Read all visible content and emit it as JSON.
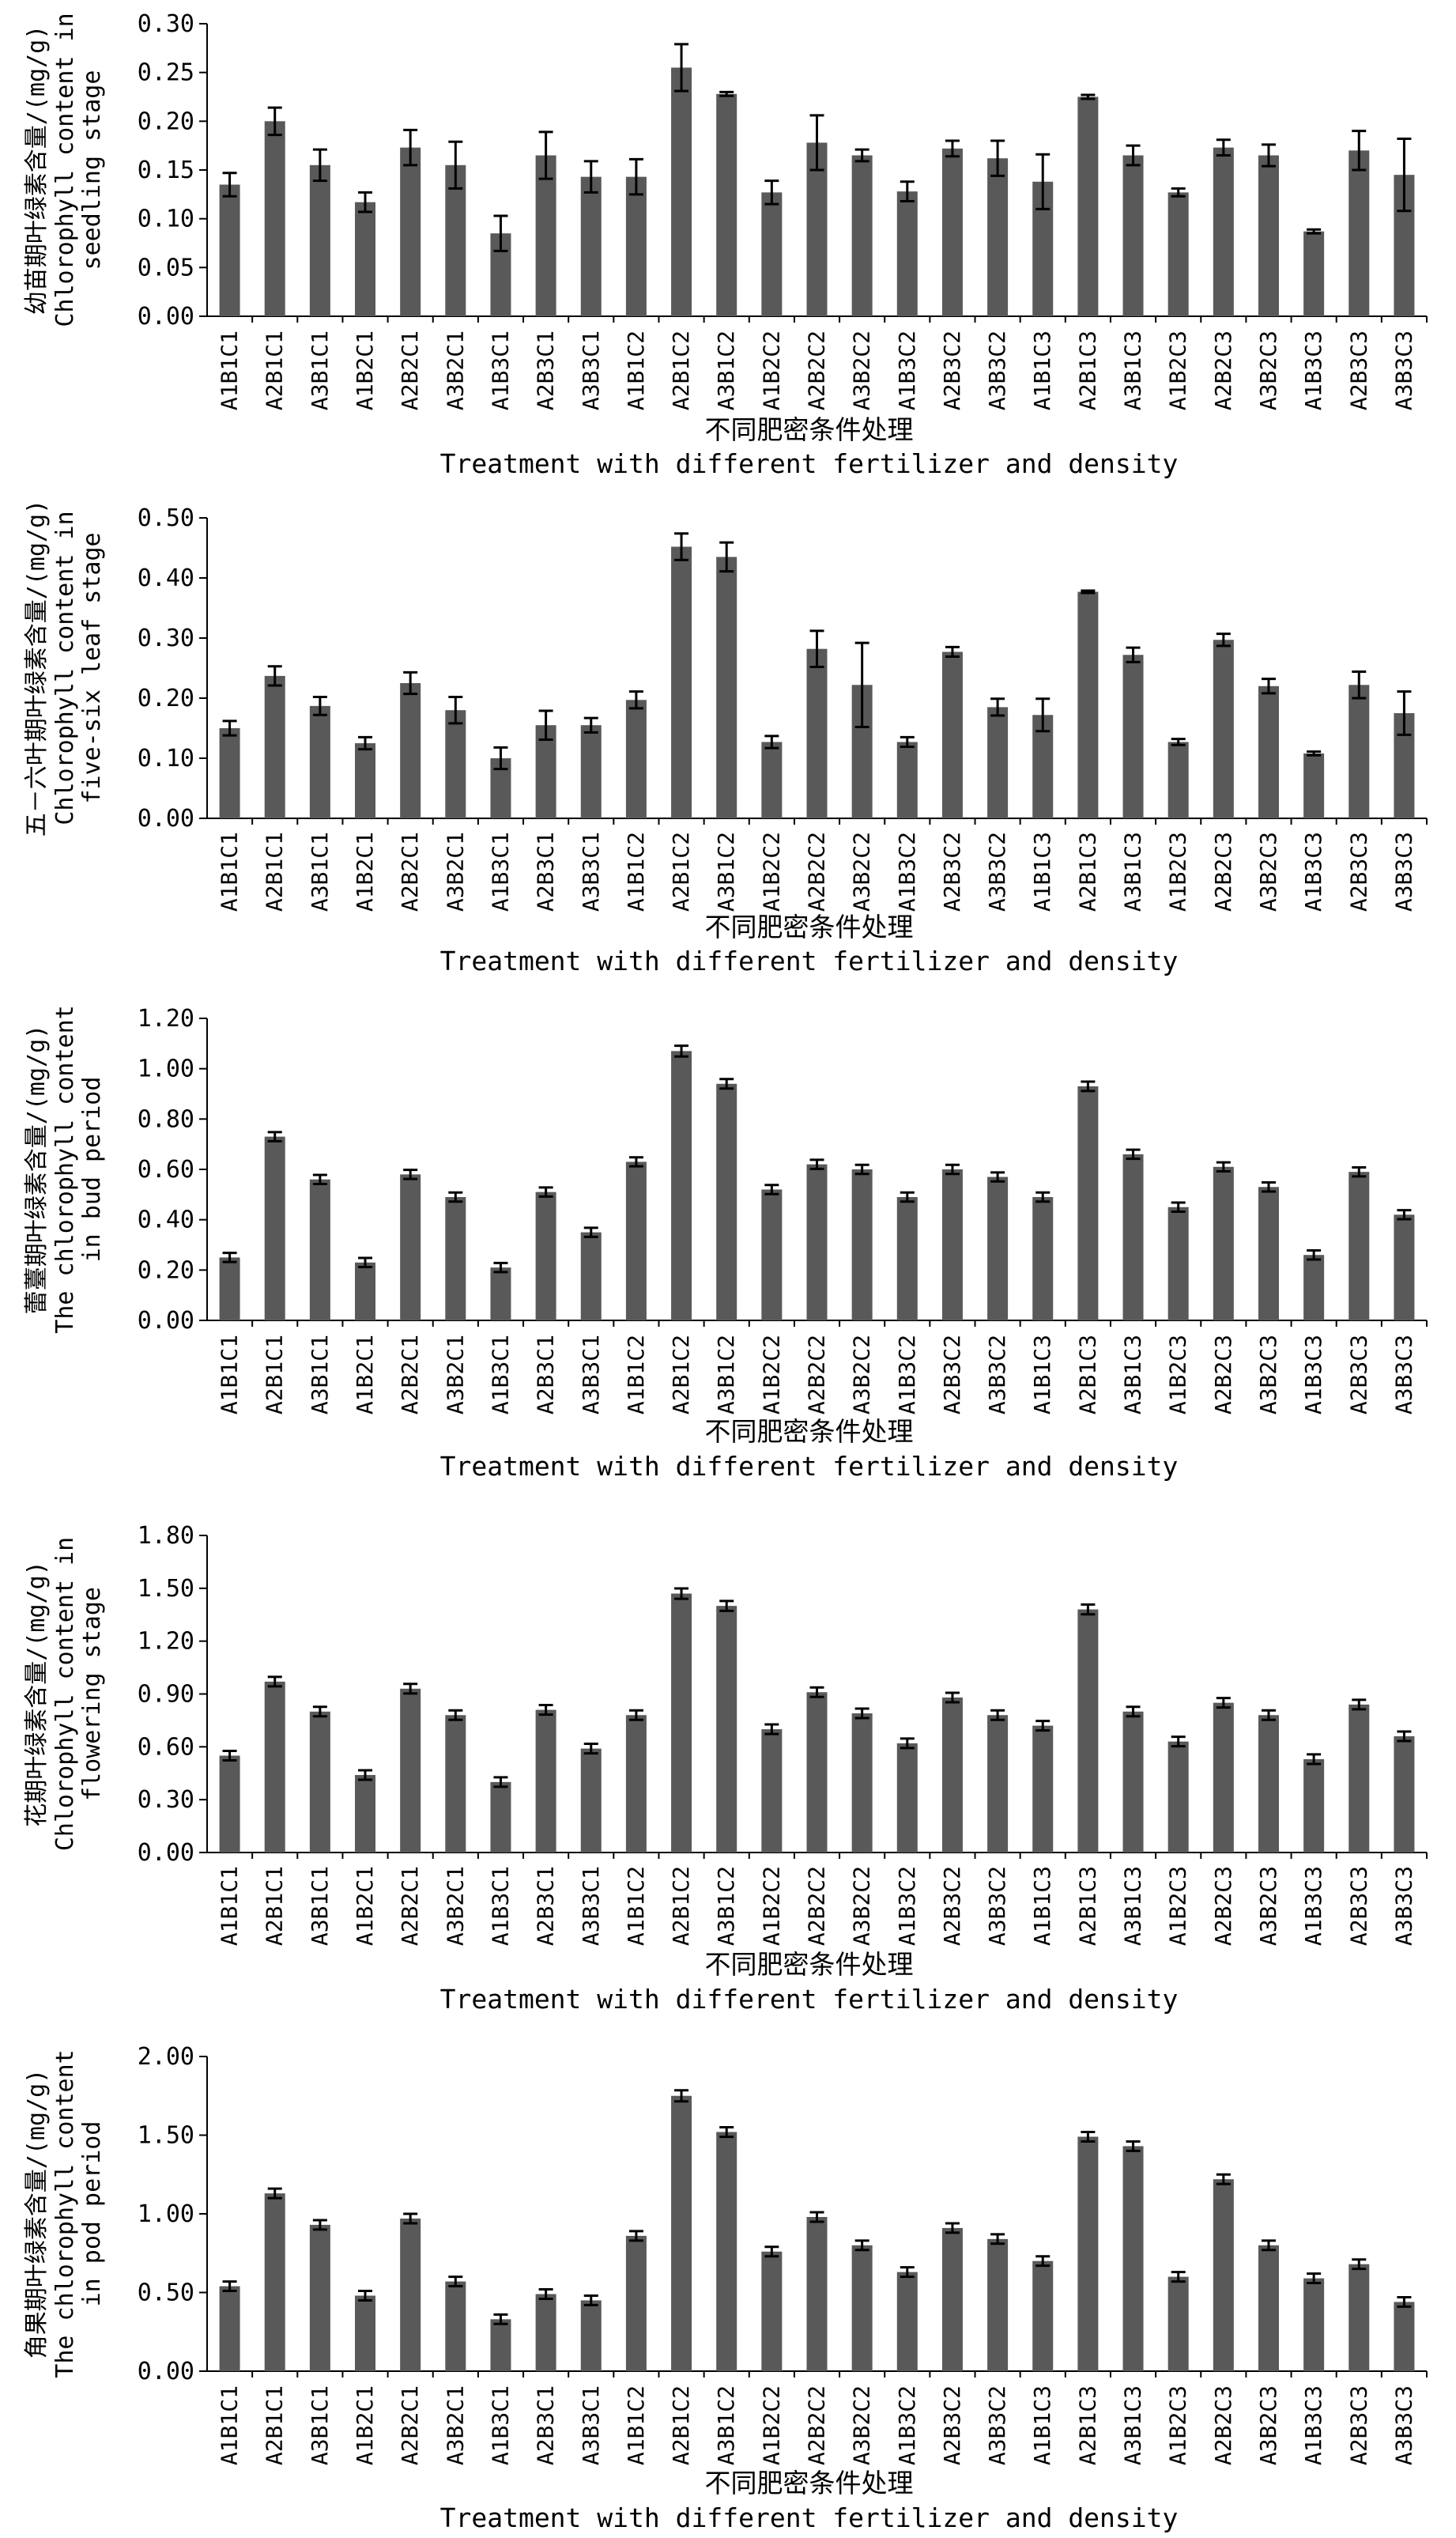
{
  "chart_data": [
    {
      "type": "bar",
      "ylabel": "幼苗期叶绿素含量/(mg/g)",
      "ylabel_en": [
        "Chlorophyll content in",
        "seedling stage"
      ],
      "xlabel": "不同肥密条件处理",
      "xlabel_en": "Treatment with different fertilizer and density",
      "ylim": [
        0,
        0.3
      ],
      "yticks": [
        "0.00",
        "0.05",
        "0.10",
        "0.15",
        "0.20",
        "0.25",
        "0.30"
      ],
      "categories": [
        "A1B1C1",
        "A2B1C1",
        "A3B1C1",
        "A1B2C1",
        "A2B2C1",
        "A3B2C1",
        "A1B3C1",
        "A2B3C1",
        "A3B3C1",
        "A1B1C2",
        "A2B1C2",
        "A3B1C2",
        "A1B2C2",
        "A2B2C2",
        "A3B2C2",
        "A1B3C2",
        "A2B3C2",
        "A3B3C2",
        "A1B1C3",
        "A2B1C3",
        "A3B1C3",
        "A1B2C3",
        "A2B2C3",
        "A3B2C3",
        "A1B3C3",
        "A2B3C3",
        "A3B3C3"
      ],
      "values": [
        0.135,
        0.2,
        0.155,
        0.117,
        0.173,
        0.155,
        0.085,
        0.165,
        0.143,
        0.143,
        0.255,
        0.228,
        0.127,
        0.178,
        0.165,
        0.128,
        0.172,
        0.162,
        0.138,
        0.225,
        0.165,
        0.127,
        0.173,
        0.165,
        0.087,
        0.17,
        0.145
      ],
      "errors": [
        0.012,
        0.014,
        0.016,
        0.01,
        0.018,
        0.024,
        0.018,
        0.024,
        0.016,
        0.018,
        0.024,
        0.002,
        0.012,
        0.028,
        0.006,
        0.01,
        0.008,
        0.018,
        0.028,
        0.002,
        0.01,
        0.004,
        0.008,
        0.011,
        0.002,
        0.02,
        0.037
      ]
    },
    {
      "type": "bar",
      "ylabel": "五－六叶期叶绿素含量/(mg/g)",
      "ylabel_en": [
        "Chlorophyll content in",
        "five-six leaf stage"
      ],
      "xlabel": "不同肥密条件处理",
      "xlabel_en": "Treatment with different fertilizer and density",
      "ylim": [
        0,
        0.5
      ],
      "yticks": [
        "0.00",
        "0.10",
        "0.20",
        "0.30",
        "0.40",
        "0.50"
      ],
      "categories": [
        "A1B1C1",
        "A2B1C1",
        "A3B1C1",
        "A1B2C1",
        "A2B2C1",
        "A3B2C1",
        "A1B3C1",
        "A2B3C1",
        "A3B3C1",
        "A1B1C2",
        "A2B1C2",
        "A3B1C2",
        "A1B2C2",
        "A2B2C2",
        "A3B2C2",
        "A1B3C2",
        "A2B3C2",
        "A3B3C2",
        "A1B1C3",
        "A2B1C3",
        "A3B1C3",
        "A1B2C3",
        "A2B2C3",
        "A3B2C3",
        "A1B3C3",
        "A2B3C3",
        "A3B3C3"
      ],
      "values": [
        0.15,
        0.237,
        0.187,
        0.125,
        0.225,
        0.18,
        0.1,
        0.155,
        0.155,
        0.197,
        0.452,
        0.435,
        0.127,
        0.282,
        0.222,
        0.127,
        0.277,
        0.185,
        0.172,
        0.377,
        0.272,
        0.127,
        0.297,
        0.22,
        0.108,
        0.222,
        0.175
      ],
      "errors": [
        0.012,
        0.016,
        0.015,
        0.01,
        0.018,
        0.022,
        0.018,
        0.024,
        0.012,
        0.014,
        0.022,
        0.024,
        0.01,
        0.03,
        0.07,
        0.008,
        0.008,
        0.014,
        0.027,
        0.002,
        0.012,
        0.005,
        0.01,
        0.012,
        0.003,
        0.022,
        0.036
      ]
    },
    {
      "type": "bar",
      "ylabel": "蕾薹期叶绿素含量/(mg/g)",
      "ylabel_en": [
        "The chlorophyll content",
        "in bud period"
      ],
      "xlabel": "不同肥密条件处理",
      "xlabel_en": "Treatment with different fertilizer and density",
      "ylim": [
        0,
        1.2
      ],
      "yticks": [
        "0.00",
        "0.20",
        "0.40",
        "0.60",
        "0.80",
        "1.00",
        "1.20"
      ],
      "categories": [
        "A1B1C1",
        "A2B1C1",
        "A3B1C1",
        "A1B2C1",
        "A2B2C1",
        "A3B2C1",
        "A1B3C1",
        "A2B3C1",
        "A3B3C1",
        "A1B1C2",
        "A2B1C2",
        "A3B1C2",
        "A1B2C2",
        "A2B2C2",
        "A3B2C2",
        "A1B3C2",
        "A2B3C2",
        "A3B3C2",
        "A1B1C3",
        "A2B1C3",
        "A3B1C3",
        "A1B2C3",
        "A2B2C3",
        "A3B2C3",
        "A1B3C3",
        "A2B3C3",
        "A3B3C3"
      ],
      "values": [
        0.25,
        0.73,
        0.56,
        0.23,
        0.58,
        0.49,
        0.21,
        0.51,
        0.35,
        0.63,
        1.07,
        0.94,
        0.52,
        0.62,
        0.6,
        0.49,
        0.6,
        0.57,
        0.49,
        0.93,
        0.66,
        0.45,
        0.61,
        0.53,
        0.26,
        0.59,
        0.42
      ]
    },
    {
      "type": "bar",
      "ylabel": "花期叶绿素含量/(mg/g)",
      "ylabel_en": [
        "Chlorophyll content in",
        "flowering stage"
      ],
      "xlabel": "不同肥密条件处理",
      "xlabel_en": "Treatment with different fertilizer and density",
      "ylim": [
        0,
        1.8
      ],
      "yticks": [
        "0.00",
        "0.30",
        "0.60",
        "0.90",
        "1.20",
        "1.50",
        "1.80"
      ],
      "categories": [
        "A1B1C1",
        "A2B1C1",
        "A3B1C1",
        "A1B2C1",
        "A2B2C1",
        "A3B2C1",
        "A1B3C1",
        "A2B3C1",
        "A3B3C1",
        "A1B1C2",
        "A2B1C2",
        "A3B1C2",
        "A1B2C2",
        "A2B2C2",
        "A3B2C2",
        "A1B3C2",
        "A2B3C2",
        "A3B3C2",
        "A1B1C3",
        "A2B1C3",
        "A3B1C3",
        "A1B2C3",
        "A2B2C3",
        "A3B2C3",
        "A1B3C3",
        "A2B3C3",
        "A3B3C3"
      ],
      "values": [
        0.55,
        0.97,
        0.8,
        0.44,
        0.93,
        0.78,
        0.4,
        0.81,
        0.59,
        0.78,
        1.47,
        1.4,
        0.7,
        0.91,
        0.79,
        0.62,
        0.88,
        0.78,
        0.72,
        1.38,
        0.8,
        0.63,
        0.85,
        0.78,
        0.53,
        0.84,
        0.66
      ]
    },
    {
      "type": "bar",
      "ylabel": "角果期叶绿素含量/(mg/g)",
      "ylabel_en": [
        "The chlorophyll content",
        "in pod period"
      ],
      "xlabel": "不同肥密条件处理",
      "xlabel_en": "Treatment with different fertilizer and density",
      "ylim": [
        0,
        2.0
      ],
      "yticks": [
        "0.00",
        "0.50",
        "1.00",
        "1.50",
        "2.00"
      ],
      "categories": [
        "A1B1C1",
        "A2B1C1",
        "A3B1C1",
        "A1B2C1",
        "A2B2C1",
        "A3B2C1",
        "A1B3C1",
        "A2B3C1",
        "A3B3C1",
        "A1B1C2",
        "A2B1C2",
        "A3B1C2",
        "A1B2C2",
        "A2B2C2",
        "A3B2C2",
        "A1B3C2",
        "A2B3C2",
        "A3B3C2",
        "A1B1C3",
        "A2B1C3",
        "A3B1C3",
        "A1B2C3",
        "A2B2C3",
        "A3B2C3",
        "A1B3C3",
        "A2B3C3",
        "A3B3C3"
      ],
      "values": [
        0.54,
        1.13,
        0.93,
        0.48,
        0.97,
        0.57,
        0.33,
        0.49,
        0.45,
        0.86,
        1.75,
        1.52,
        0.76,
        0.98,
        0.8,
        0.63,
        0.91,
        0.84,
        0.7,
        1.49,
        1.43,
        0.6,
        1.22,
        0.8,
        0.59,
        0.68,
        0.44
      ]
    }
  ]
}
